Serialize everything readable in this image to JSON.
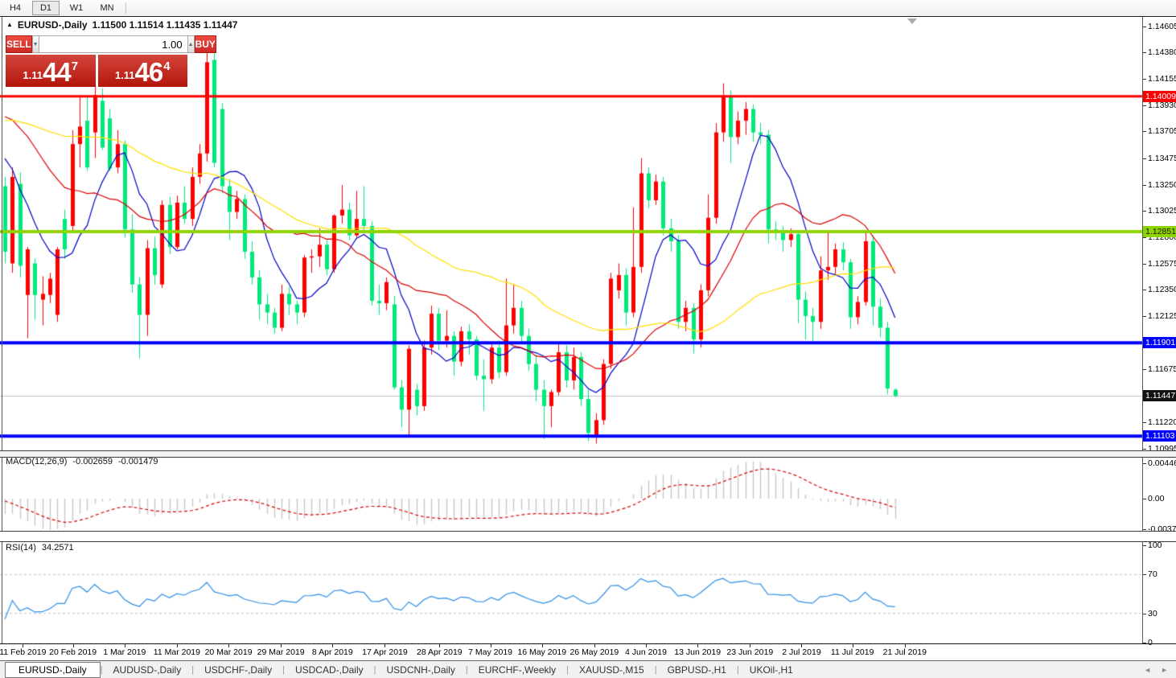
{
  "toolbar": {
    "timeframes": [
      {
        "label": "H4",
        "active": false
      },
      {
        "label": "D1",
        "active": true
      },
      {
        "label": "W1",
        "active": false
      },
      {
        "label": "MN",
        "active": false
      }
    ]
  },
  "chart": {
    "collapse_icon": "▲",
    "shift_icon": "▼",
    "symbol": "EURUSD-,Daily",
    "ohlc": "1.11500 1.11514 1.11435 1.11447"
  },
  "trade_panel": {
    "sell_label": "SELL",
    "buy_label": "BUY",
    "volume": "1.00",
    "spin_up_icon": "▲",
    "spin_down_icon": "▼",
    "sell_price": {
      "prefix": "1.11",
      "big": "44",
      "sup": "7"
    },
    "buy_price": {
      "prefix": "1.11",
      "big": "46",
      "sup": "4"
    }
  },
  "price_axis": {
    "ticks": [
      "1.14605",
      "1.14380",
      "1.14155",
      "1.13930",
      "1.13705",
      "1.13475",
      "1.13250",
      "1.13025",
      "1.12800",
      "1.12575",
      "1.12350",
      "1.12125",
      "1.11675",
      "1.11220",
      "1.10995"
    ],
    "current": {
      "label": "1.11447",
      "bg": "#111111",
      "text": "#ffffff"
    }
  },
  "levels": [
    {
      "label": "1.14009",
      "price": 1.14009,
      "color": "#ff0000",
      "width": 3,
      "text": "#ffffff"
    },
    {
      "label": "1.12851",
      "price": 1.12851,
      "color": "#8fd302",
      "width": 4,
      "text": "#1a1a00"
    },
    {
      "label": "1.11901",
      "price": 1.11901,
      "color": "#0000ff",
      "width": 4,
      "text": "#ffffff"
    },
    {
      "label": "1.11103",
      "price": 1.11103,
      "color": "#0000ff",
      "width": 4,
      "text": "#ffffff"
    }
  ],
  "current_price": 1.11447,
  "chart_data": {
    "type": "candlestick",
    "symbol": "EURUSD",
    "timeframe": "Daily",
    "up_color": "#ff0000",
    "down_color": "#00e97b",
    "current_line_color": "#c0c0c0",
    "candles": [
      [
        1.1324,
        1.1332,
        1.1258,
        1.1268
      ],
      [
        1.1258,
        1.134,
        1.125,
        1.1332
      ],
      [
        1.1326,
        1.1336,
        1.1246,
        1.1256
      ],
      [
        1.1231,
        1.1272,
        1.1194,
        1.127
      ],
      [
        1.1258,
        1.1262,
        1.121,
        1.1231
      ],
      [
        1.1227,
        1.1247,
        1.1205,
        1.1232
      ],
      [
        1.1231,
        1.125,
        1.1224,
        1.1245
      ],
      [
        1.1214,
        1.1272,
        1.1208,
        1.127
      ],
      [
        1.1296,
        1.1304,
        1.1262,
        1.127
      ],
      [
        1.129,
        1.1372,
        1.1284,
        1.136
      ],
      [
        1.136,
        1.1402,
        1.134,
        1.1375
      ],
      [
        1.138,
        1.1401,
        1.1337,
        1.134
      ],
      [
        1.137,
        1.141,
        1.1348,
        1.1402
      ],
      [
        1.1397,
        1.1408,
        1.1355,
        1.1357
      ],
      [
        1.1382,
        1.139,
        1.1337,
        1.1339
      ],
      [
        1.134,
        1.1372,
        1.1335,
        1.136
      ],
      [
        1.136,
        1.1363,
        1.128,
        1.1287
      ],
      [
        1.1287,
        1.13,
        1.1233,
        1.124
      ],
      [
        1.124,
        1.1246,
        1.1177,
        1.1214
      ],
      [
        1.1214,
        1.1278,
        1.1196,
        1.1271
      ],
      [
        1.1271,
        1.1281,
        1.124,
        1.1248
      ],
      [
        1.124,
        1.1312,
        1.1237,
        1.1308
      ],
      [
        1.1308,
        1.1315,
        1.1266,
        1.1272
      ],
      [
        1.1272,
        1.1316,
        1.127,
        1.131
      ],
      [
        1.131,
        1.1324,
        1.1292,
        1.1296
      ],
      [
        1.1296,
        1.134,
        1.129,
        1.1332
      ],
      [
        1.1332,
        1.136,
        1.1326,
        1.1352
      ],
      [
        1.1352,
        1.145,
        1.1345,
        1.143
      ],
      [
        1.1432,
        1.1448,
        1.134,
        1.1344
      ],
      [
        1.139,
        1.1395,
        1.1318,
        1.1324
      ],
      [
        1.1324,
        1.133,
        1.1278,
        1.1302
      ],
      [
        1.1302,
        1.132,
        1.1296,
        1.1313
      ],
      [
        1.1313,
        1.1317,
        1.1262,
        1.1268
      ],
      [
        1.1268,
        1.1277,
        1.124,
        1.1246
      ],
      [
        1.1246,
        1.1252,
        1.121,
        1.1223
      ],
      [
        1.1223,
        1.1232,
        1.1206,
        1.1216
      ],
      [
        1.1216,
        1.122,
        1.1198,
        1.1203
      ],
      [
        1.1203,
        1.124,
        1.12,
        1.1232
      ],
      [
        1.1232,
        1.1238,
        1.1214,
        1.1223
      ],
      [
        1.1223,
        1.1226,
        1.1206,
        1.1216
      ],
      [
        1.1216,
        1.1265,
        1.1212,
        1.1263
      ],
      [
        1.1263,
        1.127,
        1.125,
        1.1264
      ],
      [
        1.1264,
        1.1288,
        1.1255,
        1.1274
      ],
      [
        1.1274,
        1.1278,
        1.1248,
        1.1253
      ],
      [
        1.1253,
        1.13,
        1.125,
        1.1299
      ],
      [
        1.1299,
        1.1325,
        1.1292,
        1.1304
      ],
      [
        1.1304,
        1.131,
        1.1278,
        1.1282
      ],
      [
        1.1282,
        1.132,
        1.128,
        1.1296
      ],
      [
        1.1296,
        1.1324,
        1.1286,
        1.129
      ],
      [
        1.129,
        1.1294,
        1.1222,
        1.1226
      ],
      [
        1.1226,
        1.124,
        1.1214,
        1.1224
      ],
      [
        1.1224,
        1.1246,
        1.1218,
        1.1242
      ],
      [
        1.1223,
        1.123,
        1.115,
        1.1152
      ],
      [
        1.1152,
        1.1158,
        1.1118,
        1.1133
      ],
      [
        1.1133,
        1.1188,
        1.111,
        1.1185
      ],
      [
        1.115,
        1.1155,
        1.1128,
        1.1136
      ],
      [
        1.1136,
        1.1192,
        1.1132,
        1.1186
      ],
      [
        1.1186,
        1.1222,
        1.118,
        1.1215
      ],
      [
        1.1215,
        1.122,
        1.1184,
        1.1192
      ],
      [
        1.1192,
        1.1218,
        1.1186,
        1.1196
      ],
      [
        1.1196,
        1.12,
        1.1162,
        1.1174
      ],
      [
        1.1174,
        1.1204,
        1.117,
        1.12
      ],
      [
        1.12,
        1.1206,
        1.118,
        1.1193
      ],
      [
        1.1193,
        1.1196,
        1.1158,
        1.1162
      ],
      [
        1.1162,
        1.1176,
        1.1132,
        1.1159
      ],
      [
        1.1159,
        1.119,
        1.1155,
        1.1186
      ],
      [
        1.1186,
        1.1192,
        1.116,
        1.1165
      ],
      [
        1.1165,
        1.1245,
        1.1162,
        1.1205
      ],
      [
        1.1205,
        1.124,
        1.1198,
        1.122
      ],
      [
        1.122,
        1.1226,
        1.119,
        1.1196
      ],
      [
        1.1196,
        1.1202,
        1.1166,
        1.1172
      ],
      [
        1.1172,
        1.118,
        1.114,
        1.115
      ],
      [
        1.115,
        1.1158,
        1.1108,
        1.1136
      ],
      [
        1.1136,
        1.115,
        1.1118,
        1.1148
      ],
      [
        1.1148,
        1.119,
        1.1145,
        1.1182
      ],
      [
        1.1182,
        1.1188,
        1.1152,
        1.1158
      ],
      [
        1.1158,
        1.1186,
        1.115,
        1.1178
      ],
      [
        1.1178,
        1.1182,
        1.1136,
        1.1142
      ],
      [
        1.1142,
        1.115,
        1.1106,
        1.1113
      ],
      [
        1.111,
        1.113,
        1.1104,
        1.1124
      ],
      [
        1.1124,
        1.1176,
        1.112,
        1.1172
      ],
      [
        1.1172,
        1.125,
        1.1168,
        1.1245
      ],
      [
        1.1235,
        1.1258,
        1.1228,
        1.1248
      ],
      [
        1.1248,
        1.1254,
        1.1205,
        1.1216
      ],
      [
        1.1216,
        1.1306,
        1.1212,
        1.1255
      ],
      [
        1.1255,
        1.1348,
        1.125,
        1.1335
      ],
      [
        1.1335,
        1.134,
        1.1305,
        1.1312
      ],
      [
        1.1312,
        1.1334,
        1.1308,
        1.1328
      ],
      [
        1.1328,
        1.1332,
        1.1282,
        1.1288
      ],
      [
        1.1288,
        1.1296,
        1.1268,
        1.1277
      ],
      [
        1.1277,
        1.1282,
        1.1202,
        1.1208
      ],
      [
        1.1208,
        1.1226,
        1.12,
        1.122
      ],
      [
        1.122,
        1.1224,
        1.1181,
        1.1193
      ],
      [
        1.1193,
        1.124,
        1.1186,
        1.1235
      ],
      [
        1.1235,
        1.1317,
        1.123,
        1.1297
      ],
      [
        1.1297,
        1.1378,
        1.1292,
        1.137
      ],
      [
        1.137,
        1.1412,
        1.1362,
        1.14
      ],
      [
        1.14,
        1.1406,
        1.1344,
        1.1366
      ],
      [
        1.1366,
        1.1388,
        1.136,
        1.138
      ],
      [
        1.138,
        1.1396,
        1.1368,
        1.139
      ],
      [
        1.139,
        1.1394,
        1.1362,
        1.137
      ],
      [
        1.137,
        1.1378,
        1.136,
        1.1368
      ],
      [
        1.1368,
        1.1372,
        1.1275,
        1.1287
      ],
      [
        1.1287,
        1.1294,
        1.1278,
        1.1285
      ],
      [
        1.1285,
        1.129,
        1.1268,
        1.1278
      ],
      [
        1.1278,
        1.1288,
        1.1272,
        1.1283
      ],
      [
        1.1283,
        1.1286,
        1.1207,
        1.1227
      ],
      [
        1.1227,
        1.1234,
        1.1193,
        1.1213
      ],
      [
        1.1213,
        1.122,
        1.119,
        1.1208
      ],
      [
        1.1208,
        1.1264,
        1.1202,
        1.1252
      ],
      [
        1.1252,
        1.1286,
        1.1244,
        1.1255
      ],
      [
        1.1255,
        1.1275,
        1.1248,
        1.127
      ],
      [
        1.127,
        1.1276,
        1.1252,
        1.1259
      ],
      [
        1.1259,
        1.1262,
        1.1202,
        1.1212
      ],
      [
        1.1212,
        1.123,
        1.1206,
        1.1225
      ],
      [
        1.1225,
        1.1285,
        1.1222,
        1.1277
      ],
      [
        1.1277,
        1.1282,
        1.1205,
        1.1221
      ],
      [
        1.1221,
        1.1228,
        1.1195,
        1.1203
      ],
      [
        1.1203,
        1.1208,
        1.1146,
        1.1151
      ],
      [
        1.115,
        1.11514,
        1.11435,
        1.11447
      ]
    ],
    "prehistory_closes": [
      1.127,
      1.1282,
      1.1295,
      1.1288,
      1.1302,
      1.1315,
      1.1308,
      1.1322,
      1.1335,
      1.1328,
      1.1342,
      1.1355,
      1.1348,
      1.136,
      1.1372,
      1.1365,
      1.1378,
      1.139,
      1.1382,
      1.1395,
      1.1405,
      1.1398,
      1.141,
      1.142,
      1.1412,
      1.1425,
      1.1415,
      1.1405,
      1.1395,
      1.1385,
      1.1375,
      1.1388,
      1.1398,
      1.1408,
      1.1418,
      1.1428,
      1.1436,
      1.1428,
      1.1415,
      1.1402,
      1.1392,
      1.1382,
      1.1394,
      1.1405,
      1.1392,
      1.1375,
      1.1358,
      1.134,
      1.1328,
      1.1315
    ],
    "moving_averages": [
      {
        "period": 8,
        "color": "#0000cd"
      },
      {
        "period": 20,
        "color": "#dd0000"
      },
      {
        "period": 45,
        "color": "#ffdf00"
      }
    ],
    "time_axis": {
      "labels": [
        "11 Feb 2019",
        "20 Feb 2019",
        "1 Mar 2019",
        "11 Mar 2019",
        "20 Mar 2019",
        "29 Mar 2019",
        "8 Apr 2019",
        "17 Apr 2019",
        "28 Apr 2019",
        "7 May 2019",
        "16 May 2019",
        "26 May 2019",
        "4 Jun 2019",
        "13 Jun 2019",
        "23 Jun 2019",
        "2 Jul 2019",
        "11 Jul 2019",
        "21 Jul 2019"
      ],
      "indices": [
        2.4,
        9.1,
        16,
        23,
        29.9,
        36.9,
        43.8,
        50.8,
        58.1,
        64.9,
        71.8,
        78.8,
        85.7,
        92.6,
        99.6,
        106.5,
        113.3,
        120.3
      ]
    },
    "macd": {
      "title": "MACD(12,26,9)",
      "value_main": "-0.002659",
      "value_signal": "-0.001479",
      "axis": [
        "0.004465",
        "0.00",
        "-0.003715"
      ],
      "histogram_color": "#c8c8c8",
      "signal_color": "#dd0000"
    },
    "rsi": {
      "title": "RSI(14)",
      "value": "34.2571",
      "axis": [
        "100",
        "70",
        "30",
        "0"
      ],
      "levels": [
        70,
        30
      ],
      "color": "#2e8fe8"
    }
  },
  "tabs": {
    "prev_icon": "◄",
    "next_icon": "►",
    "items": [
      {
        "label": "EURUSD-,Daily",
        "active": true
      },
      {
        "label": "AUDUSD-,Daily",
        "active": false
      },
      {
        "label": "USDCHF-,Daily",
        "active": false
      },
      {
        "label": "USDCAD-,Daily",
        "active": false
      },
      {
        "label": "USDCNH-,Daily",
        "active": false
      },
      {
        "label": "EURCHF-,Weekly",
        "active": false
      },
      {
        "label": "XAUUSD-,M15",
        "active": false
      },
      {
        "label": "GBPUSD-,H1",
        "active": false
      },
      {
        "label": "UKOil-,H1",
        "active": false
      }
    ]
  }
}
